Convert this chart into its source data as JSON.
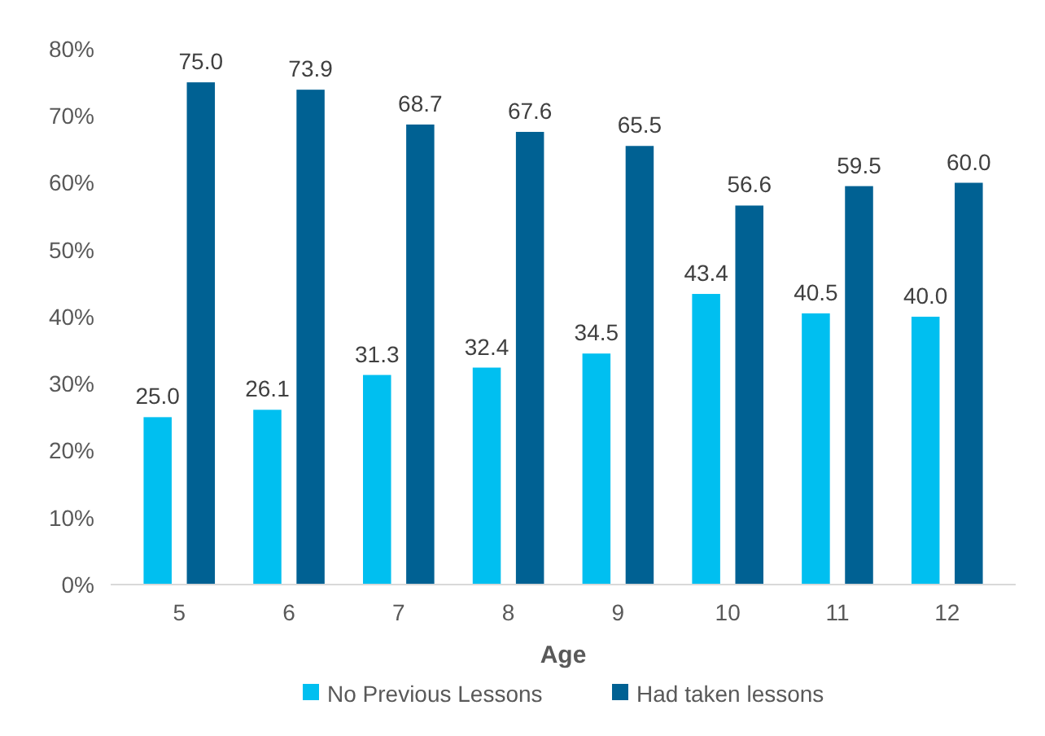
{
  "chart_data": {
    "type": "bar",
    "xlabel": "Age",
    "categories": [
      "5",
      "6",
      "7",
      "8",
      "9",
      "10",
      "11",
      "12"
    ],
    "series": [
      {
        "name": "No Previous Lessons",
        "color": "#00bff0",
        "values": [
          25.0,
          26.1,
          31.3,
          32.4,
          34.5,
          43.4,
          40.5,
          40.0
        ],
        "value_labels": [
          "25.0",
          "26.1",
          "31.3",
          "32.4",
          "34.5",
          "43.4",
          "40.5",
          "40.0"
        ]
      },
      {
        "name": "Had taken lessons",
        "color": "#006193",
        "values": [
          75.0,
          73.9,
          68.7,
          67.6,
          65.5,
          56.6,
          59.5,
          60.0
        ],
        "value_labels": [
          "75.0",
          "73.9",
          "68.7",
          "67.6",
          "65.5",
          "56.6",
          "59.5",
          "60.0"
        ]
      }
    ],
    "ylim": [
      0,
      80
    ],
    "yticks": [
      {
        "value": 0,
        "label": "0%"
      },
      {
        "value": 10,
        "label": "10%"
      },
      {
        "value": 20,
        "label": "20%"
      },
      {
        "value": 30,
        "label": "30%"
      },
      {
        "value": 40,
        "label": "40%"
      },
      {
        "value": 50,
        "label": "50%"
      },
      {
        "value": 60,
        "label": "60%"
      },
      {
        "value": 70,
        "label": "70%"
      },
      {
        "value": 80,
        "label": "80%"
      }
    ],
    "legend": "bottom"
  }
}
